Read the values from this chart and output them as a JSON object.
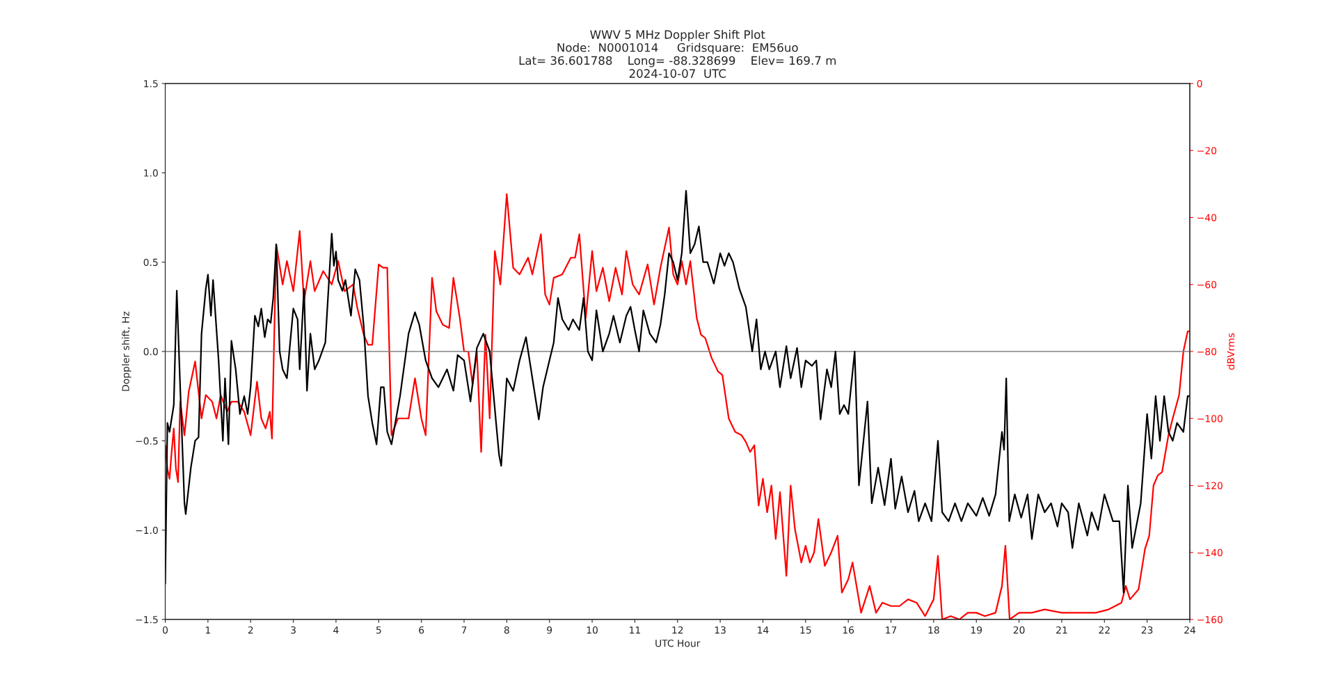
{
  "chart_data": {
    "type": "line",
    "title": "WWV 5 MHz Doppler Shift Plot\nNode:  N0001014     Gridsquare:  EM56uo\nLat= 36.601788    Long= -88.328699    Elev= 169.7 m\n2024-10-07  UTC",
    "xlabel": "UTC Hour",
    "ylabel": "Doppler shift, Hz",
    "y2label": "dBVrms",
    "xlim": [
      0,
      24
    ],
    "xticks": [
      0,
      1,
      2,
      3,
      4,
      5,
      6,
      7,
      8,
      9,
      10,
      11,
      12,
      13,
      14,
      15,
      16,
      17,
      18,
      19,
      20,
      21,
      22,
      23,
      24
    ],
    "ylim": [
      -1.5,
      1.5
    ],
    "yticks": [
      {
        "value": -1.5,
        "label": "−1.5"
      },
      {
        "value": -1.0,
        "label": "−1.0"
      },
      {
        "value": -0.5,
        "label": "−0.5"
      },
      {
        "value": 0,
        "label": "0.0"
      },
      {
        "value": 0.5,
        "label": "0.5"
      },
      {
        "value": 1.0,
        "label": "1.0"
      },
      {
        "value": 1.5,
        "label": "1.5"
      }
    ],
    "y2lim": [
      -160,
      0
    ],
    "y2ticks": [
      {
        "value": -160,
        "label": "−160"
      },
      {
        "value": -140,
        "label": "−140"
      },
      {
        "value": -120,
        "label": "−120"
      },
      {
        "value": -100,
        "label": "−100"
      },
      {
        "value": -80,
        "label": "−80"
      },
      {
        "value": -60,
        "label": "−60"
      },
      {
        "value": -40,
        "label": "−40"
      },
      {
        "value": -20,
        "label": "−20"
      },
      {
        "value": 0,
        "label": "0"
      }
    ],
    "ref_lines": [
      {
        "axis": "y",
        "value": 0,
        "color": "#808080"
      }
    ],
    "series": [
      {
        "color": "#000000",
        "x": [
          0.0,
          0.05,
          0.1,
          0.2,
          0.27,
          0.35,
          0.45,
          0.48,
          0.6,
          0.7,
          0.78,
          0.85,
          0.95,
          1.0,
          1.07,
          1.12,
          1.25,
          1.35,
          1.4,
          1.48,
          1.55,
          1.65,
          1.75,
          1.85,
          1.93,
          2.0,
          2.1,
          2.18,
          2.25,
          2.33,
          2.4,
          2.47,
          2.53,
          2.6,
          2.68,
          2.75,
          2.85,
          3.0,
          3.1,
          3.15,
          3.25,
          3.32,
          3.4,
          3.5,
          3.6,
          3.75,
          3.9,
          3.95,
          4.0,
          4.05,
          4.15,
          4.22,
          4.35,
          4.45,
          4.55,
          4.65,
          4.75,
          4.85,
          4.95,
          5.05,
          5.12,
          5.2,
          5.3,
          5.5,
          5.7,
          5.85,
          5.95,
          6.1,
          6.25,
          6.4,
          6.6,
          6.75,
          6.85,
          7.0,
          7.15,
          7.3,
          7.45,
          7.6,
          7.75,
          7.82,
          7.87,
          8.0,
          8.15,
          8.3,
          8.45,
          8.6,
          8.75,
          8.85,
          9.0,
          9.1,
          9.2,
          9.3,
          9.45,
          9.55,
          9.7,
          9.8,
          9.9,
          10.0,
          10.1,
          10.25,
          10.4,
          10.5,
          10.65,
          10.8,
          10.9,
          11.0,
          11.1,
          11.2,
          11.35,
          11.5,
          11.6,
          11.7,
          11.8,
          11.9,
          12.0,
          12.1,
          12.2,
          12.3,
          12.4,
          12.5,
          12.6,
          12.7,
          12.85,
          13.0,
          13.1,
          13.2,
          13.3,
          13.45,
          13.6,
          13.75,
          13.85,
          13.95,
          14.05,
          14.15,
          14.3,
          14.4,
          14.55,
          14.65,
          14.8,
          14.9,
          15.0,
          15.15,
          15.25,
          15.35,
          15.5,
          15.6,
          15.7,
          15.8,
          15.9,
          16.0,
          16.15,
          16.25,
          16.45,
          16.55,
          16.7,
          16.85,
          17.0,
          17.1,
          17.25,
          17.4,
          17.55,
          17.65,
          17.8,
          17.95,
          18.1,
          18.2,
          18.35,
          18.5,
          18.65,
          18.8,
          19.0,
          19.15,
          19.3,
          19.45,
          19.6,
          19.65,
          19.7,
          19.77,
          19.9,
          20.05,
          20.2,
          20.3,
          20.45,
          20.6,
          20.75,
          20.9,
          21.0,
          21.15,
          21.25,
          21.4,
          21.6,
          21.7,
          21.85,
          22.0,
          22.2,
          22.35,
          22.45,
          22.55,
          22.65,
          22.85,
          23.0,
          23.1,
          23.2,
          23.3,
          23.4,
          23.5,
          23.6,
          23.7,
          23.85,
          23.95,
          24.0
        ],
        "values": [
          -1.3,
          -0.4,
          -0.45,
          -0.3,
          0.34,
          -0.2,
          -0.85,
          -0.91,
          -0.65,
          -0.5,
          -0.48,
          0.1,
          0.35,
          0.43,
          0.2,
          0.4,
          -0.05,
          -0.5,
          -0.15,
          -0.52,
          0.06,
          -0.1,
          -0.35,
          -0.25,
          -0.35,
          -0.2,
          0.2,
          0.14,
          0.24,
          0.08,
          0.18,
          0.16,
          0.3,
          0.6,
          0.0,
          -0.1,
          -0.15,
          0.24,
          0.18,
          -0.1,
          0.35,
          -0.22,
          0.1,
          -0.1,
          -0.05,
          0.05,
          0.66,
          0.48,
          0.56,
          0.4,
          0.34,
          0.4,
          0.2,
          0.46,
          0.4,
          0.14,
          -0.25,
          -0.4,
          -0.52,
          -0.2,
          -0.2,
          -0.45,
          -0.52,
          -0.25,
          0.1,
          0.22,
          0.15,
          -0.05,
          -0.15,
          -0.2,
          -0.1,
          -0.22,
          -0.02,
          -0.05,
          -0.28,
          0.02,
          0.1,
          0.0,
          -0.4,
          -0.58,
          -0.64,
          -0.15,
          -0.22,
          -0.05,
          0.08,
          -0.15,
          -0.38,
          -0.2,
          -0.05,
          0.05,
          0.3,
          0.18,
          0.12,
          0.18,
          0.12,
          0.3,
          0.0,
          -0.05,
          0.23,
          0.0,
          0.1,
          0.2,
          0.05,
          0.2,
          0.25,
          0.12,
          0.0,
          0.23,
          0.1,
          0.05,
          0.15,
          0.32,
          0.55,
          0.5,
          0.4,
          0.55,
          0.9,
          0.55,
          0.6,
          0.7,
          0.5,
          0.5,
          0.38,
          0.55,
          0.48,
          0.55,
          0.5,
          0.35,
          0.25,
          0.0,
          0.18,
          -0.1,
          0.0,
          -0.1,
          0.0,
          -0.2,
          0.03,
          -0.15,
          0.02,
          -0.2,
          -0.05,
          -0.08,
          -0.05,
          -0.38,
          -0.1,
          -0.2,
          0.0,
          -0.35,
          -0.3,
          -0.35,
          0.0,
          -0.75,
          -0.28,
          -0.85,
          -0.65,
          -0.86,
          -0.6,
          -0.88,
          -0.7,
          -0.9,
          -0.78,
          -0.95,
          -0.85,
          -0.95,
          -0.5,
          -0.9,
          -0.95,
          -0.85,
          -0.95,
          -0.85,
          -0.92,
          -0.82,
          -0.92,
          -0.8,
          -0.45,
          -0.55,
          -0.15,
          -0.95,
          -0.8,
          -0.93,
          -0.8,
          -1.05,
          -0.8,
          -0.9,
          -0.85,
          -0.98,
          -0.85,
          -0.9,
          -1.1,
          -0.85,
          -1.03,
          -0.9,
          -1.0,
          -0.8,
          -0.95,
          -0.95,
          -1.35,
          -0.75,
          -1.1,
          -0.85,
          -0.35,
          -0.6,
          -0.25,
          -0.5,
          -0.25,
          -0.45,
          -0.5,
          -0.4,
          -0.45,
          -0.25,
          -0.25
        ]
      },
      {
        "color": "#ff0000",
        "axis": "y2",
        "x": [
          0.0,
          0.05,
          0.1,
          0.15,
          0.2,
          0.25,
          0.3,
          0.35,
          0.45,
          0.55,
          0.7,
          0.85,
          0.95,
          1.1,
          1.2,
          1.3,
          1.45,
          1.55,
          1.7,
          1.85,
          2.0,
          2.15,
          2.25,
          2.35,
          2.45,
          2.5,
          2.6,
          2.75,
          2.85,
          3.0,
          3.15,
          3.25,
          3.4,
          3.5,
          3.7,
          3.9,
          4.05,
          4.2,
          4.4,
          4.5,
          4.65,
          4.75,
          4.85,
          5.0,
          5.1,
          5.2,
          5.3,
          5.45,
          5.6,
          5.7,
          5.85,
          6.0,
          6.1,
          6.25,
          6.35,
          6.5,
          6.65,
          6.75,
          6.9,
          7.0,
          7.1,
          7.2,
          7.3,
          7.4,
          7.5,
          7.6,
          7.72,
          7.85,
          8.0,
          8.15,
          8.3,
          8.5,
          8.6,
          8.8,
          8.9,
          9.0,
          9.1,
          9.3,
          9.5,
          9.6,
          9.7,
          9.85,
          10.0,
          10.1,
          10.25,
          10.4,
          10.55,
          10.7,
          10.8,
          10.95,
          11.1,
          11.3,
          11.45,
          11.6,
          11.8,
          11.9,
          12.0,
          12.1,
          12.2,
          12.3,
          12.45,
          12.55,
          12.65,
          12.8,
          12.95,
          13.05,
          13.2,
          13.35,
          13.5,
          13.6,
          13.7,
          13.8,
          13.9,
          14.0,
          14.1,
          14.2,
          14.3,
          14.4,
          14.55,
          14.65,
          14.75,
          14.9,
          15.0,
          15.1,
          15.2,
          15.3,
          15.45,
          15.6,
          15.75,
          15.85,
          16.0,
          16.1,
          16.3,
          16.5,
          16.65,
          16.8,
          17.0,
          17.2,
          17.4,
          17.6,
          17.8,
          18.0,
          18.1,
          18.2,
          18.4,
          18.6,
          18.8,
          19.0,
          19.2,
          19.45,
          19.6,
          19.68,
          19.78,
          20.0,
          20.3,
          20.6,
          21.0,
          21.4,
          21.8,
          22.1,
          22.4,
          22.5,
          22.6,
          22.8,
          22.95,
          23.05,
          23.15,
          23.25,
          23.35,
          23.5,
          23.6,
          23.75,
          23.85,
          23.95,
          24.0
        ],
        "values": [
          -108,
          -115,
          -118,
          -110,
          -103,
          -115,
          -119,
          -95,
          -105,
          -92,
          -83,
          -100,
          -93,
          -95,
          -100,
          -93,
          -98,
          -95,
          -95,
          -98,
          -105,
          -89,
          -100,
          -103,
          -98,
          -106,
          -48,
          -60,
          -53,
          -62,
          -44,
          -65,
          -53,
          -62,
          -56,
          -60,
          -53,
          -62,
          -60,
          -67,
          -75,
          -78,
          -78,
          -54,
          -55,
          -55,
          -105,
          -100,
          -100,
          -100,
          -88,
          -100,
          -105,
          -58,
          -68,
          -72,
          -73,
          -58,
          -70,
          -80,
          -80,
          -90,
          -80,
          -110,
          -75,
          -100,
          -50,
          -60,
          -33,
          -55,
          -57,
          -52,
          -57,
          -45,
          -63,
          -66,
          -58,
          -57,
          -52,
          -52,
          -45,
          -70,
          -50,
          -62,
          -55,
          -65,
          -55,
          -63,
          -50,
          -60,
          -63,
          -54,
          -66,
          -55,
          -43,
          -57,
          -60,
          -53,
          -60,
          -53,
          -70,
          -75,
          -76,
          -82,
          -86,
          -87,
          -100,
          -104,
          -105,
          -107,
          -110,
          -108,
          -126,
          -118,
          -128,
          -120,
          -136,
          -122,
          -147,
          -120,
          -133,
          -143,
          -138,
          -143,
          -140,
          -130,
          -144,
          -140,
          -135,
          -152,
          -148,
          -143,
          -158,
          -150,
          -158,
          -155,
          -156,
          -156,
          -154,
          -155,
          -159,
          -154,
          -141,
          -160,
          -159,
          -160,
          -158,
          -158,
          -159,
          -158,
          -150,
          -138,
          -160,
          -158,
          -158,
          -157,
          -158,
          -158,
          -158,
          -157,
          -155,
          -150,
          -154,
          -151,
          -139,
          -135,
          -120,
          -117,
          -116,
          -105,
          -100,
          -93,
          -80,
          -74,
          -74
        ]
      }
    ]
  }
}
